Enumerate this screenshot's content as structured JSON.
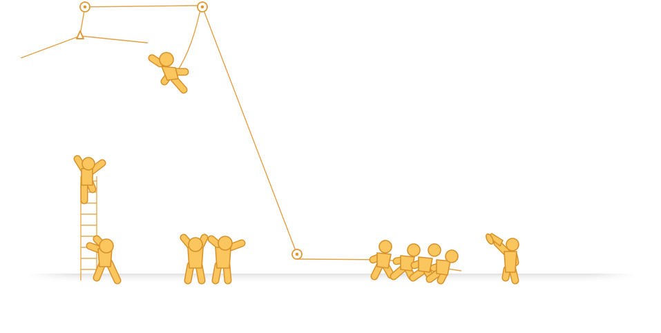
{
  "colors": {
    "figure_fill": "#fbc65d",
    "figure_outline": "#d8912a",
    "rope": "#e2a043",
    "ground_shadow": "#e8e8e8",
    "background": "#ffffff"
  },
  "scene": {
    "figures": [
      {
        "name": "figure-hanging-on-rope",
        "pose": "swinging"
      },
      {
        "name": "figure-on-ladder",
        "pose": "waving"
      },
      {
        "name": "figure-holding-ladder",
        "pose": "steadying"
      },
      {
        "name": "figure-cheering-left",
        "pose": "arms-up"
      },
      {
        "name": "figure-cheering-right",
        "pose": "arms-up"
      },
      {
        "name": "figure-pulling-1",
        "pose": "pulling"
      },
      {
        "name": "figure-pulling-2",
        "pose": "pulling"
      },
      {
        "name": "figure-pulling-3",
        "pose": "pulling"
      },
      {
        "name": "figure-pulling-4",
        "pose": "pulling"
      },
      {
        "name": "figure-megaphone",
        "pose": "shouting"
      }
    ],
    "props": [
      "rope",
      "pulley",
      "ladder",
      "megaphone"
    ]
  }
}
